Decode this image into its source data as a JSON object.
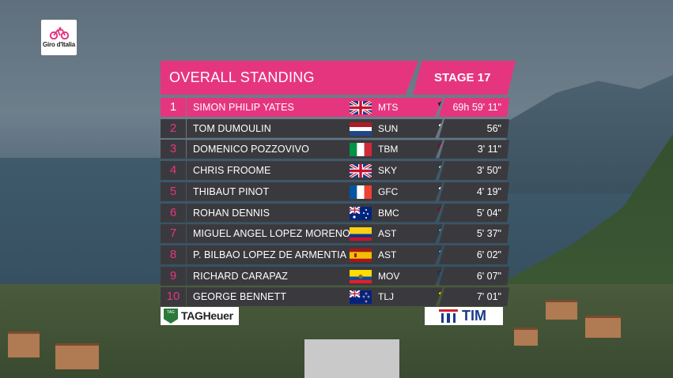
{
  "logo": {
    "text": "Giro d'Italia"
  },
  "header": {
    "title": "OVERALL STANDING",
    "stage": "STAGE 17"
  },
  "standings": [
    {
      "pos": "1",
      "name": "SIMON PHILIP YATES",
      "flag": "gb-flag-icon",
      "team": "MTS",
      "jersey": "mitchelton-scott-jersey-icon",
      "time": "69h 59' 11\""
    },
    {
      "pos": "2",
      "name": "TOM DUMOULIN",
      "flag": "nl-flag-icon",
      "team": "SUN",
      "jersey": "sunweb-jersey-icon",
      "time": "56\""
    },
    {
      "pos": "3",
      "name": "DOMENICO POZZOVIVO",
      "flag": "it-flag-icon",
      "team": "TBM",
      "jersey": "bahrain-merida-jersey-icon",
      "time": "3' 11\""
    },
    {
      "pos": "4",
      "name": "CHRIS FROOME",
      "flag": "gb-flag-icon",
      "team": "SKY",
      "jersey": "sky-jersey-icon",
      "time": "3' 50\""
    },
    {
      "pos": "5",
      "name": "THIBAUT PINOT",
      "flag": "fr-flag-icon",
      "team": "GFC",
      "jersey": "groupama-fdj-jersey-icon",
      "time": "4' 19\""
    },
    {
      "pos": "6",
      "name": "ROHAN DENNIS",
      "flag": "au-flag-icon",
      "team": "BMC",
      "jersey": "bmc-jersey-icon",
      "time": "5' 04\""
    },
    {
      "pos": "7",
      "name": "MIGUEL ANGEL LOPEZ MORENO",
      "flag": "co-flag-icon",
      "team": "AST",
      "jersey": "astana-jersey-icon",
      "time": "5' 37\""
    },
    {
      "pos": "8",
      "name": "P. BILBAO LOPEZ DE ARMENTIA",
      "flag": "es-flag-icon",
      "team": "AST",
      "jersey": "astana-jersey-icon",
      "time": "6' 02\""
    },
    {
      "pos": "9",
      "name": "RICHARD CARAPAZ",
      "flag": "ec-flag-icon",
      "team": "MOV",
      "jersey": "movistar-jersey-icon",
      "time": "6' 07\""
    },
    {
      "pos": "10",
      "name": "GEORGE BENNETT",
      "flag": "nz-flag-icon",
      "team": "TLJ",
      "jersey": "lottonl-jumbo-jersey-icon",
      "time": "7' 01\""
    }
  ],
  "sponsors": {
    "left": "TAGHeuer",
    "right": "TIM",
    "left_badge": "TAG"
  },
  "colors": {
    "accent": "#e6357f",
    "row_bg": "#3a3a3e"
  }
}
